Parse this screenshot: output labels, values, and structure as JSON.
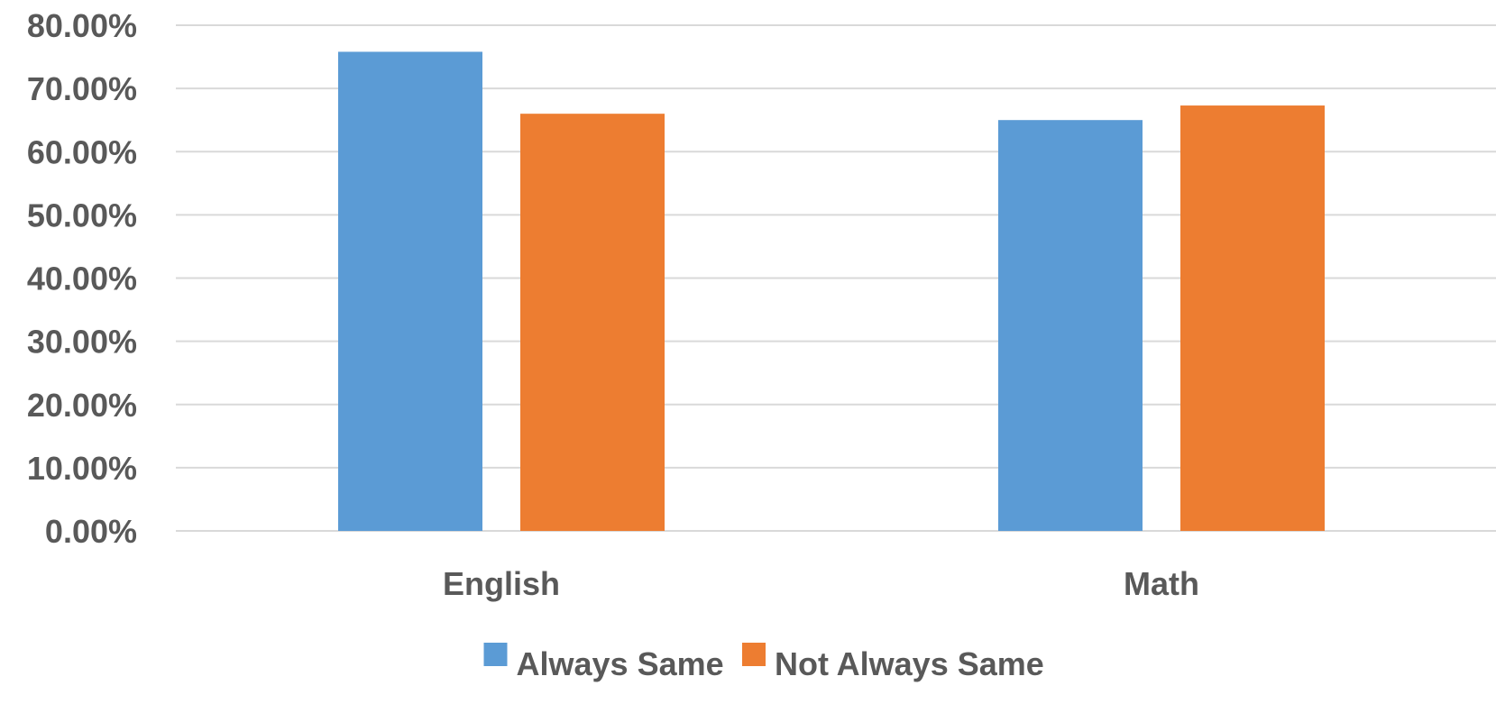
{
  "chart_data": {
    "type": "bar",
    "title": "",
    "xlabel": "",
    "ylabel": "",
    "categories": [
      "English",
      "Math"
    ],
    "series": [
      {
        "name": "Always Same",
        "values": [
          75.8,
          65.0
        ],
        "color": "#5b9bd5"
      },
      {
        "name": "Not Always Same",
        "values": [
          66.0,
          67.3
        ],
        "color": "#ed7d31"
      }
    ],
    "ylim": [
      0,
      80
    ],
    "yticks": [
      "0.00%",
      "10.00%",
      "20.00%",
      "30.00%",
      "40.00%",
      "50.00%",
      "60.00%",
      "70.00%",
      "80.00%"
    ],
    "grid": true,
    "legend_position": "bottom",
    "colors": {
      "gridline": "#d9d9d9",
      "text": "#595959"
    }
  }
}
